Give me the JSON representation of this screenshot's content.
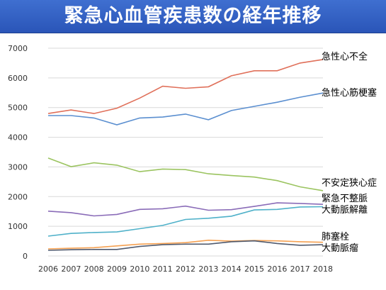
{
  "title": "緊急心血管疾患数の経年推移",
  "chart_data": {
    "type": "line",
    "title": "緊急心血管疾患数の経年推移",
    "xlabel": "",
    "ylabel": "",
    "x": [
      2006,
      2007,
      2008,
      2009,
      2010,
      2011,
      2012,
      2013,
      2014,
      2015,
      2016,
      2017,
      2018
    ],
    "ylim": [
      0,
      7000
    ],
    "yticks": [
      0,
      1000,
      2000,
      3000,
      4000,
      5000,
      6000,
      7000
    ],
    "grid": true,
    "legend": "direct labels at right end of lines",
    "series": [
      {
        "name": "急性心不全",
        "color": "#e0705a",
        "values": [
          4800,
          4920,
          4800,
          4980,
          5320,
          5720,
          5650,
          5700,
          6070,
          6240,
          6240,
          6500,
          6620
        ]
      },
      {
        "name": "急性心筋梗塞",
        "color": "#5b8fd0",
        "values": [
          4730,
          4730,
          4650,
          4420,
          4650,
          4680,
          4780,
          4590,
          4900,
          5040,
          5180,
          5350,
          5490
        ]
      },
      {
        "name": "不安定狭心症",
        "color": "#9bc460",
        "values": [
          3300,
          3010,
          3140,
          3060,
          2840,
          2930,
          2910,
          2770,
          2710,
          2660,
          2540,
          2330,
          2200
        ]
      },
      {
        "name": "緊急不整脈",
        "color": "#8a6cb8",
        "values": [
          1510,
          1460,
          1350,
          1400,
          1570,
          1590,
          1680,
          1540,
          1560,
          1670,
          1790,
          1770,
          1740
        ]
      },
      {
        "name": "大動脈解離",
        "color": "#4fb1c9",
        "values": [
          670,
          760,
          790,
          810,
          920,
          1030,
          1230,
          1270,
          1340,
          1550,
          1570,
          1650,
          1660
        ]
      },
      {
        "name": "肺塞栓",
        "color": "#f5a152",
        "values": [
          240,
          260,
          280,
          340,
          400,
          420,
          450,
          530,
          500,
          520,
          510,
          480,
          460
        ]
      },
      {
        "name": "大動脈瘤",
        "color": "#505a6e",
        "values": [
          190,
          210,
          220,
          220,
          320,
          380,
          400,
          400,
          480,
          510,
          420,
          360,
          380
        ]
      }
    ]
  }
}
